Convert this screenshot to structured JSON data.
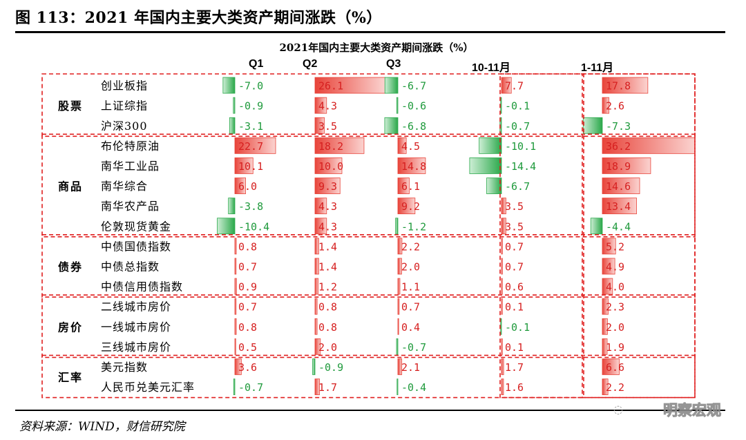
{
  "figure_title": "图 113：2021 年国内主要大类资产期间涨跌（%）",
  "source": "资料来源：WIND，财信研究院",
  "watermark": "明察宏观",
  "colors": {
    "positive": "#e8443a",
    "negative": "#2aa84a",
    "dash": "#e01e1e",
    "text_pos": "#d62020",
    "text_neg": "#1f9a3c"
  },
  "chart_data": {
    "type": "table",
    "title": "2021年国内主要大类资产期间涨跌（%）",
    "columns": [
      "Q1",
      "Q2",
      "Q3",
      "10-11月",
      "1-11月"
    ],
    "groups": [
      {
        "name": "股票",
        "rows": [
          {
            "label": "创业板指",
            "values": [
              -7.0,
              26.1,
              -6.7,
              7.7,
              17.8
            ],
            "text": [
              "-7.0",
              "26.1",
              "-6.7",
              "7.7",
              "17.8"
            ]
          },
          {
            "label": "上证综指",
            "values": [
              -0.9,
              4.3,
              -0.6,
              -0.1,
              2.6
            ],
            "text": [
              "-0.9",
              "4.3",
              "-0.6",
              "-0.1",
              "2.6"
            ]
          },
          {
            "label": "沪深300",
            "values": [
              -3.1,
              3.5,
              -6.8,
              -0.7,
              -7.3
            ],
            "text": [
              "-3.1",
              "3.5",
              "-6.8",
              "-0.7",
              "-7.3"
            ]
          }
        ]
      },
      {
        "name": "商品",
        "rows": [
          {
            "label": "布伦特原油",
            "values": [
              22.7,
              18.2,
              4.5,
              -10.1,
              36.2
            ],
            "text": [
              "22.7",
              "18.2",
              "4.5",
              "-10.1",
              "36.2"
            ]
          },
          {
            "label": "南华工业品",
            "values": [
              10.1,
              10.0,
              14.8,
              -14.4,
              18.9
            ],
            "text": [
              "10.1",
              "10.0",
              "14.8",
              "-14.4",
              "18.9"
            ]
          },
          {
            "label": "南华综合",
            "values": [
              6.0,
              9.3,
              6.1,
              -6.7,
              14.6
            ],
            "text": [
              "6.0",
              "9.3",
              "6.1",
              "-6.7",
              "14.6"
            ]
          },
          {
            "label": "南华农产品",
            "values": [
              -3.8,
              4.3,
              9.2,
              3.5,
              13.4
            ],
            "text": [
              "-3.8",
              "4.3",
              "9.2",
              "3.5",
              "13.4"
            ]
          },
          {
            "label": "伦敦现货黄金",
            "values": [
              -10.4,
              4.3,
              -1.2,
              3.5,
              -4.4
            ],
            "text": [
              "-10.4",
              "4.3",
              "-1.2",
              "3.5",
              "-4.4"
            ]
          }
        ]
      },
      {
        "name": "债券",
        "rows": [
          {
            "label": "中债国债指数",
            "values": [
              0.8,
              1.4,
              2.2,
              0.7,
              5.2
            ],
            "text": [
              "0.8",
              "1.4",
              "2.2",
              "0.7",
              "5.2"
            ]
          },
          {
            "label": "中债总指数",
            "values": [
              0.7,
              1.4,
              2.0,
              0.7,
              4.9
            ],
            "text": [
              "0.7",
              "1.4",
              "2.0",
              "0.7",
              "4.9"
            ]
          },
          {
            "label": "中债信用债指数",
            "values": [
              0.9,
              1.2,
              1.1,
              0.6,
              4.0
            ],
            "text": [
              "0.9",
              "1.2",
              "1.1",
              "0.6",
              "4.0"
            ]
          }
        ]
      },
      {
        "name": "房价",
        "rows": [
          {
            "label": "二线城市房价",
            "values": [
              0.7,
              0.8,
              0.7,
              0.1,
              2.3
            ],
            "text": [
              "0.7",
              "0.8",
              "0.7",
              "0.1",
              "2.3"
            ]
          },
          {
            "label": "一线城市房价",
            "values": [
              0.8,
              0.8,
              0.4,
              -0.1,
              2.0
            ],
            "text": [
              "0.8",
              "0.8",
              "0.4",
              "-0.1",
              "2.0"
            ]
          },
          {
            "label": "三线城市房价",
            "values": [
              0.5,
              2.0,
              -0.7,
              0.1,
              1.9
            ],
            "text": [
              "0.5",
              "2.0",
              "-0.7",
              "0.1",
              "1.9"
            ]
          }
        ]
      },
      {
        "name": "汇率",
        "rows": [
          {
            "label": "美元指数",
            "values": [
              3.6,
              -0.9,
              2.1,
              1.7,
              6.6
            ],
            "text": [
              "3.6",
              "-0.9",
              "2.1",
              "1.7",
              "6.6"
            ]
          },
          {
            "label": "人民币兑美元汇率",
            "values": [
              -0.7,
              1.7,
              -0.4,
              1.6,
              2.2
            ],
            "text": [
              "-0.7",
              "1.7",
              "-0.4",
              "1.6",
              "2.2"
            ]
          }
        ]
      }
    ]
  }
}
